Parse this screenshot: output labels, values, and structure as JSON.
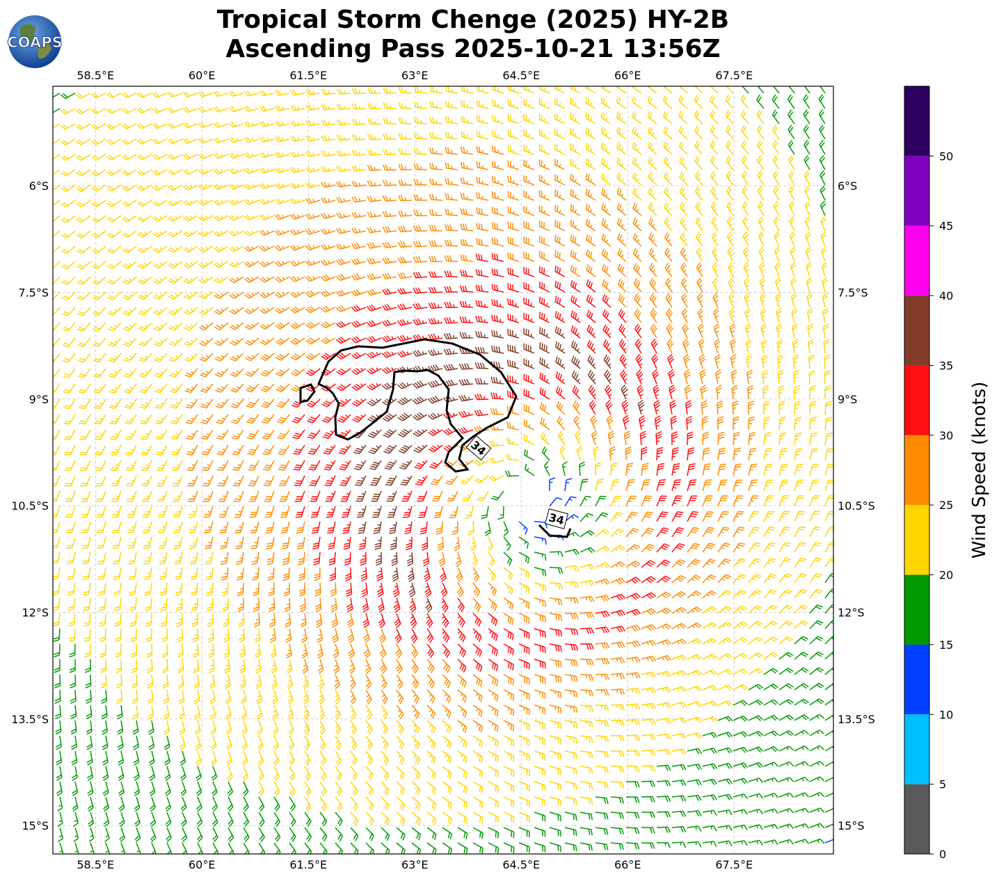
{
  "header": {
    "logo_text": "COAPS",
    "title_line1": "Tropical Storm Chenge (2025) HY-2B",
    "title_line2": "Ascending Pass 2025-10-21 13:56Z"
  },
  "map": {
    "lon_ticks": [
      "58.5°E",
      "60°E",
      "61.5°E",
      "63°E",
      "64.5°E",
      "66°E",
      "67.5°E"
    ],
    "lat_ticks": [
      "6°S",
      "7.5°S",
      "9°S",
      "10.5°S",
      "12°S",
      "13.5°S",
      "15°S"
    ],
    "lon_values": [
      58.5,
      60,
      61.5,
      63,
      64.5,
      66,
      67.5
    ],
    "lat_values": [
      -6,
      -7.5,
      -9,
      -10.5,
      -12,
      -13.5,
      -15
    ],
    "lon_range": [
      57.9,
      68.9
    ],
    "lat_range": [
      -15.4,
      -4.6
    ],
    "storm_center": {
      "lon": 64.6,
      "lat": -10.4
    },
    "contour_label": "34",
    "contour_level_kt": 34
  },
  "colorbar": {
    "label": "Wind Speed (knots)",
    "ticks": [
      "0",
      "5",
      "10",
      "15",
      "20",
      "25",
      "30",
      "35",
      "40",
      "45",
      "50"
    ],
    "bins": [
      {
        "from": 0,
        "to": 5,
        "color": "#595959"
      },
      {
        "from": 5,
        "to": 10,
        "color": "#00bfff"
      },
      {
        "from": 10,
        "to": 15,
        "color": "#0040ff"
      },
      {
        "from": 15,
        "to": 20,
        "color": "#009900"
      },
      {
        "from": 20,
        "to": 25,
        "color": "#ffd500"
      },
      {
        "from": 25,
        "to": 30,
        "color": "#ff8c00"
      },
      {
        "from": 30,
        "to": 35,
        "color": "#ff0f0f"
      },
      {
        "from": 35,
        "to": 40,
        "color": "#823c28"
      },
      {
        "from": 40,
        "to": 45,
        "color": "#ff00ee"
      },
      {
        "from": 45,
        "to": 50,
        "color": "#8000bf"
      },
      {
        "from": 50,
        "to": 55,
        "color": "#2e0060"
      }
    ]
  }
}
